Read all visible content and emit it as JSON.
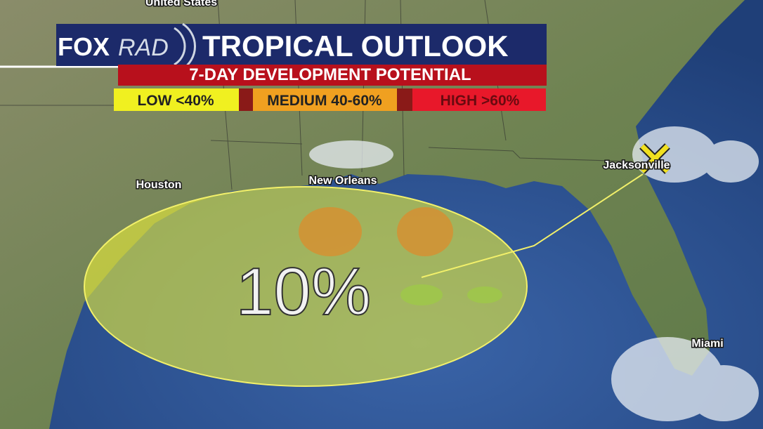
{
  "map": {
    "country_label": "United States",
    "header": {
      "logo_fox": "FOX",
      "logo_rad": "RAD",
      "title": "TROPICAL OUTLOOK",
      "subtitle": "7-DAY DEVELOPMENT POTENTIAL"
    },
    "legend": {
      "low": "LOW <40%",
      "medium": "MEDIUM 40-60%",
      "high": "HIGH >60%"
    },
    "cities": {
      "houston": "Houston",
      "new_orleans": "New Orleans",
      "jacksonville": "Jacksonville",
      "miami": "Miami"
    },
    "outlook_area": {
      "probability": "10%"
    }
  }
}
